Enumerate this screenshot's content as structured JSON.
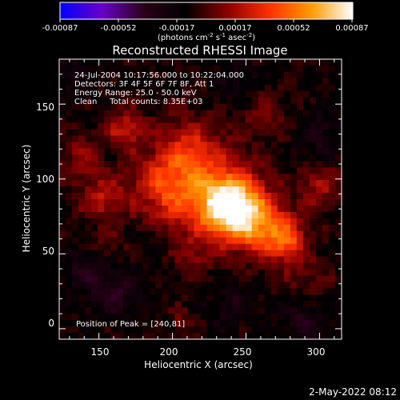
{
  "colorbar": {
    "ticks": [
      "-0.00087",
      "-0.00052",
      "-0.00017",
      "0.00017",
      "0.00052",
      "0.00087"
    ],
    "min": -0.00087,
    "max": 0.00087,
    "label_main": "(photons cm",
    "label_sup1": "-2",
    "label_mid1": " s",
    "label_sup2": "-1",
    "label_mid2": " asec",
    "label_sup3": "-2",
    "label_end": ")",
    "colormap": [
      "#0000ff",
      "#6a00c8",
      "#2a0018",
      "#000000",
      "#8a0000",
      "#ff3000",
      "#ff9a00",
      "#ffffff"
    ]
  },
  "title": "Reconstructed RHESSI Image",
  "info": {
    "line1": "24-Jul-2004 10:17:56.000 to 10:22:04.000",
    "line2": "Detectors: 3F 4F 5F 6F 7F 8F, Att 1",
    "line3": "Energy Range: 25.0 - 50.0 keV",
    "line4": "Clean     Total counts: 8.35E+03"
  },
  "peak_label": "Position of Peak = [240,81]",
  "footer_date": "2-May-2022 08:12",
  "chart_data": {
    "type": "heatmap",
    "title": "Reconstructed RHESSI Image",
    "xlabel": "Heliocentric X (arcsec)",
    "ylabel": "Heliocentric Y (arcsec)",
    "xlim": [
      123,
      315
    ],
    "ylim": [
      -7,
      180
    ],
    "xticks": [
      150,
      200,
      250,
      300
    ],
    "yticks": [
      0,
      50,
      100,
      150
    ],
    "peak": {
      "x": 240,
      "y": 81
    },
    "blobs": [
      {
        "x": 240,
        "y": 81,
        "s": 14,
        "a": 1.0
      },
      {
        "x": 220,
        "y": 95,
        "s": 24,
        "a": 0.45
      },
      {
        "x": 262,
        "y": 68,
        "s": 14,
        "a": 0.55
      },
      {
        "x": 278,
        "y": 58,
        "s": 9,
        "a": 0.45
      },
      {
        "x": 195,
        "y": 95,
        "s": 16,
        "a": 0.35
      },
      {
        "x": 152,
        "y": 87,
        "s": 11,
        "a": 0.35
      },
      {
        "x": 168,
        "y": 133,
        "s": 9,
        "a": 0.4
      },
      {
        "x": 138,
        "y": 115,
        "s": 10,
        "a": 0.25
      },
      {
        "x": 210,
        "y": 122,
        "s": 13,
        "a": 0.25
      },
      {
        "x": 300,
        "y": 95,
        "s": 10,
        "a": 0.3
      },
      {
        "x": 262,
        "y": 145,
        "s": 10,
        "a": 0.2
      },
      {
        "x": 155,
        "y": 55,
        "s": 8,
        "a": 0.15
      },
      {
        "x": 290,
        "y": 35,
        "s": 12,
        "a": 0.15
      },
      {
        "x": 205,
        "y": 5,
        "s": 6,
        "a": 0.18
      },
      {
        "x": 215,
        "y": 48,
        "s": 8,
        "a": 0.18
      },
      {
        "x": 160,
        "y": 25,
        "s": 12,
        "a": -0.28
      },
      {
        "x": 140,
        "y": 40,
        "s": 9,
        "a": -0.22
      },
      {
        "x": 290,
        "y": 5,
        "s": 10,
        "a": -0.25
      },
      {
        "x": 302,
        "y": 130,
        "s": 10,
        "a": -0.2
      },
      {
        "x": 245,
        "y": 162,
        "s": 10,
        "a": -0.15
      },
      {
        "x": 135,
        "y": 170,
        "s": 8,
        "a": -0.15
      },
      {
        "x": 240,
        "y": 15,
        "s": 10,
        "a": -0.18
      },
      {
        "x": 185,
        "y": 60,
        "s": 8,
        "a": -0.1
      }
    ]
  }
}
